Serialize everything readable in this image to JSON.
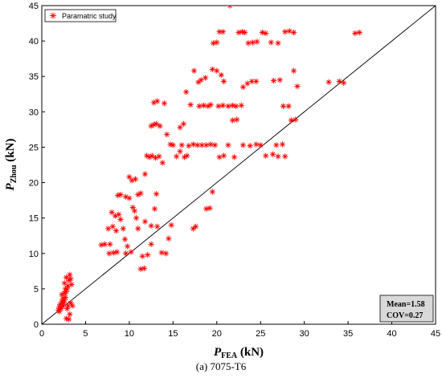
{
  "chart_data": {
    "type": "scatter",
    "xlabel": {
      "main": "P",
      "sub": "FEA",
      "unit": " (kN)"
    },
    "ylabel": {
      "main": "P",
      "sub": "Zhou",
      "unit": " (kN)"
    },
    "xlim": [
      0,
      45
    ],
    "ylim": [
      0,
      45
    ],
    "xticks": [
      "0",
      "5",
      "10",
      "15",
      "20",
      "25",
      "30",
      "35",
      "40",
      "45"
    ],
    "yticks": [
      "0",
      "5",
      "10",
      "15",
      "20",
      "25",
      "30",
      "35",
      "40",
      "45"
    ],
    "grid": false,
    "legend_position": "top-left",
    "reference_line": {
      "from": [
        0,
        0
      ],
      "to": [
        45,
        45
      ]
    },
    "stats": {
      "mean": "Mean=1.58",
      "cov": "COV=0.27"
    },
    "marker_color": "#ff0000",
    "series": [
      {
        "name": "Paramatric study",
        "points": [
          [
            2.0,
            1.8
          ],
          [
            2.2,
            2.2
          ],
          [
            2.4,
            2.6
          ],
          [
            2.5,
            3.0
          ],
          [
            2.6,
            3.4
          ],
          [
            2.7,
            3.8
          ],
          [
            2.3,
            4.2
          ],
          [
            2.8,
            4.6
          ],
          [
            2.9,
            5.0
          ],
          [
            3.0,
            5.4
          ],
          [
            2.6,
            5.8
          ],
          [
            3.1,
            6.2
          ],
          [
            2.8,
            6.6
          ],
          [
            3.2,
            7.0
          ],
          [
            2.1,
            2.8
          ],
          [
            2.4,
            3.6
          ],
          [
            2.0,
            2.4
          ],
          [
            1.9,
            2.0
          ],
          [
            2.3,
            3.2
          ],
          [
            2.6,
            4.4
          ],
          [
            2.9,
            2.2
          ],
          [
            3.0,
            2.6
          ],
          [
            3.2,
            1.4
          ],
          [
            2.8,
            0.8
          ],
          [
            3.1,
            0.7
          ],
          [
            3.3,
            3.0
          ],
          [
            3.5,
            2.6
          ],
          [
            2.7,
            5.0
          ],
          [
            3.4,
            5.6
          ],
          [
            3.3,
            6.4
          ],
          [
            6.8,
            11.2
          ],
          [
            7.2,
            11.3
          ],
          [
            7.8,
            11.3
          ],
          [
            7.6,
            13.5
          ],
          [
            8.1,
            13.8
          ],
          [
            8.5,
            13.2
          ],
          [
            7.7,
            10.0
          ],
          [
            8.2,
            10.1
          ],
          [
            8.6,
            10.2
          ],
          [
            8.0,
            15.8
          ],
          [
            8.4,
            15.3
          ],
          [
            8.8,
            15.5
          ],
          [
            9.0,
            14.8
          ],
          [
            9.3,
            13.5
          ],
          [
            9.5,
            12.0
          ],
          [
            9.8,
            11.0
          ],
          [
            9.6,
            10.0
          ],
          [
            10.2,
            10.2
          ],
          [
            8.7,
            18.2
          ],
          [
            9.0,
            18.3
          ],
          [
            9.6,
            18.0
          ],
          [
            10.0,
            17.8
          ],
          [
            10.4,
            16.5
          ],
          [
            10.6,
            16.0
          ],
          [
            10.0,
            20.8
          ],
          [
            10.3,
            20.3
          ],
          [
            10.7,
            20.5
          ],
          [
            11.0,
            18.3
          ],
          [
            11.3,
            18.5
          ],
          [
            11.8,
            21.2
          ],
          [
            12.0,
            23.8
          ],
          [
            12.3,
            23.6
          ],
          [
            12.6,
            23.8
          ],
          [
            13.0,
            23.5
          ],
          [
            13.4,
            23.7
          ],
          [
            13.8,
            22.8
          ],
          [
            12.5,
            28.0
          ],
          [
            12.8,
            28.2
          ],
          [
            13.1,
            28.3
          ],
          [
            13.5,
            28.0
          ],
          [
            12.8,
            31.3
          ],
          [
            13.2,
            31.5
          ],
          [
            14.0,
            31.2
          ],
          [
            14.3,
            26.8
          ],
          [
            14.7,
            25.4
          ],
          [
            15.0,
            25.3
          ],
          [
            15.4,
            23.7
          ],
          [
            15.8,
            24.4
          ],
          [
            11.5,
            9.6
          ],
          [
            12.1,
            9.8
          ],
          [
            12.5,
            11.3
          ],
          [
            13.2,
            13.8
          ],
          [
            13.7,
            10.1
          ],
          [
            14.2,
            10.0
          ],
          [
            14.5,
            12.1
          ],
          [
            14.8,
            14.0
          ],
          [
            11.3,
            7.8
          ],
          [
            11.7,
            7.9
          ],
          [
            12.9,
            16.3
          ],
          [
            13.1,
            18.4
          ],
          [
            11.8,
            14.5
          ],
          [
            12.5,
            13.9
          ],
          [
            10.8,
            15.0
          ],
          [
            11.0,
            13.5
          ],
          [
            15.8,
            27.8
          ],
          [
            16.2,
            28.3
          ],
          [
            16.5,
            32.8
          ],
          [
            17.0,
            31.0
          ],
          [
            17.4,
            35.8
          ],
          [
            17.9,
            34.2
          ],
          [
            16.0,
            25.3
          ],
          [
            16.8,
            25.2
          ],
          [
            17.3,
            25.4
          ],
          [
            17.8,
            25.3
          ],
          [
            18.3,
            25.3
          ],
          [
            18.8,
            25.3
          ],
          [
            19.3,
            25.4
          ],
          [
            19.8,
            25.3
          ],
          [
            16.3,
            23.6
          ],
          [
            16.6,
            23.8
          ],
          [
            18.0,
            30.8
          ],
          [
            18.5,
            30.9
          ],
          [
            19.0,
            30.8
          ],
          [
            19.3,
            31.0
          ],
          [
            18.2,
            34.5
          ],
          [
            18.7,
            34.8
          ],
          [
            19.5,
            36.0
          ],
          [
            20.0,
            35.8
          ],
          [
            20.5,
            35.2
          ],
          [
            20.8,
            34.3
          ],
          [
            20.2,
            30.8
          ],
          [
            20.7,
            30.9
          ],
          [
            21.3,
            30.8
          ],
          [
            21.8,
            30.9
          ],
          [
            22.2,
            30.8
          ],
          [
            22.8,
            30.9
          ],
          [
            23.0,
            33.5
          ],
          [
            23.5,
            34.0
          ],
          [
            24.0,
            34.3
          ],
          [
            24.5,
            34.3
          ],
          [
            19.6,
            39.7
          ],
          [
            20.0,
            39.8
          ],
          [
            20.3,
            41.3
          ],
          [
            20.7,
            41.3
          ],
          [
            22.5,
            41.2
          ],
          [
            22.9,
            41.3
          ],
          [
            23.2,
            41.2
          ],
          [
            23.6,
            39.7
          ],
          [
            24.1,
            39.8
          ],
          [
            24.6,
            39.9
          ],
          [
            25.2,
            41.2
          ],
          [
            25.6,
            41.1
          ],
          [
            26.2,
            39.8
          ],
          [
            27.0,
            39.7
          ],
          [
            27.8,
            41.3
          ],
          [
            28.3,
            41.4
          ],
          [
            28.8,
            41.2
          ],
          [
            21.5,
            45.0
          ],
          [
            20.3,
            23.6
          ],
          [
            20.8,
            23.8
          ],
          [
            21.3,
            25.3
          ],
          [
            22.0,
            23.6
          ],
          [
            17.3,
            13.5
          ],
          [
            17.6,
            13.8
          ],
          [
            18.8,
            16.3
          ],
          [
            19.2,
            16.4
          ],
          [
            19.5,
            18.7
          ],
          [
            21.8,
            28.8
          ],
          [
            22.3,
            28.9
          ],
          [
            23.0,
            25.3
          ],
          [
            23.8,
            25.2
          ],
          [
            24.5,
            25.4
          ],
          [
            25.0,
            25.3
          ],
          [
            25.6,
            23.8
          ],
          [
            26.4,
            24.0
          ],
          [
            27.0,
            23.7
          ],
          [
            26.8,
            25.3
          ],
          [
            27.5,
            25.4
          ],
          [
            27.8,
            23.7
          ],
          [
            26.5,
            34.4
          ],
          [
            27.2,
            34.5
          ],
          [
            27.6,
            30.8
          ],
          [
            28.2,
            30.8
          ],
          [
            28.5,
            28.8
          ],
          [
            29.0,
            28.9
          ],
          [
            28.8,
            35.8
          ],
          [
            29.2,
            33.6
          ],
          [
            32.8,
            34.2
          ],
          [
            34.0,
            34.3
          ],
          [
            34.5,
            34.1
          ],
          [
            35.8,
            41.1
          ],
          [
            36.3,
            41.2
          ]
        ]
      }
    ]
  },
  "caption": "(a) 7075-T6"
}
